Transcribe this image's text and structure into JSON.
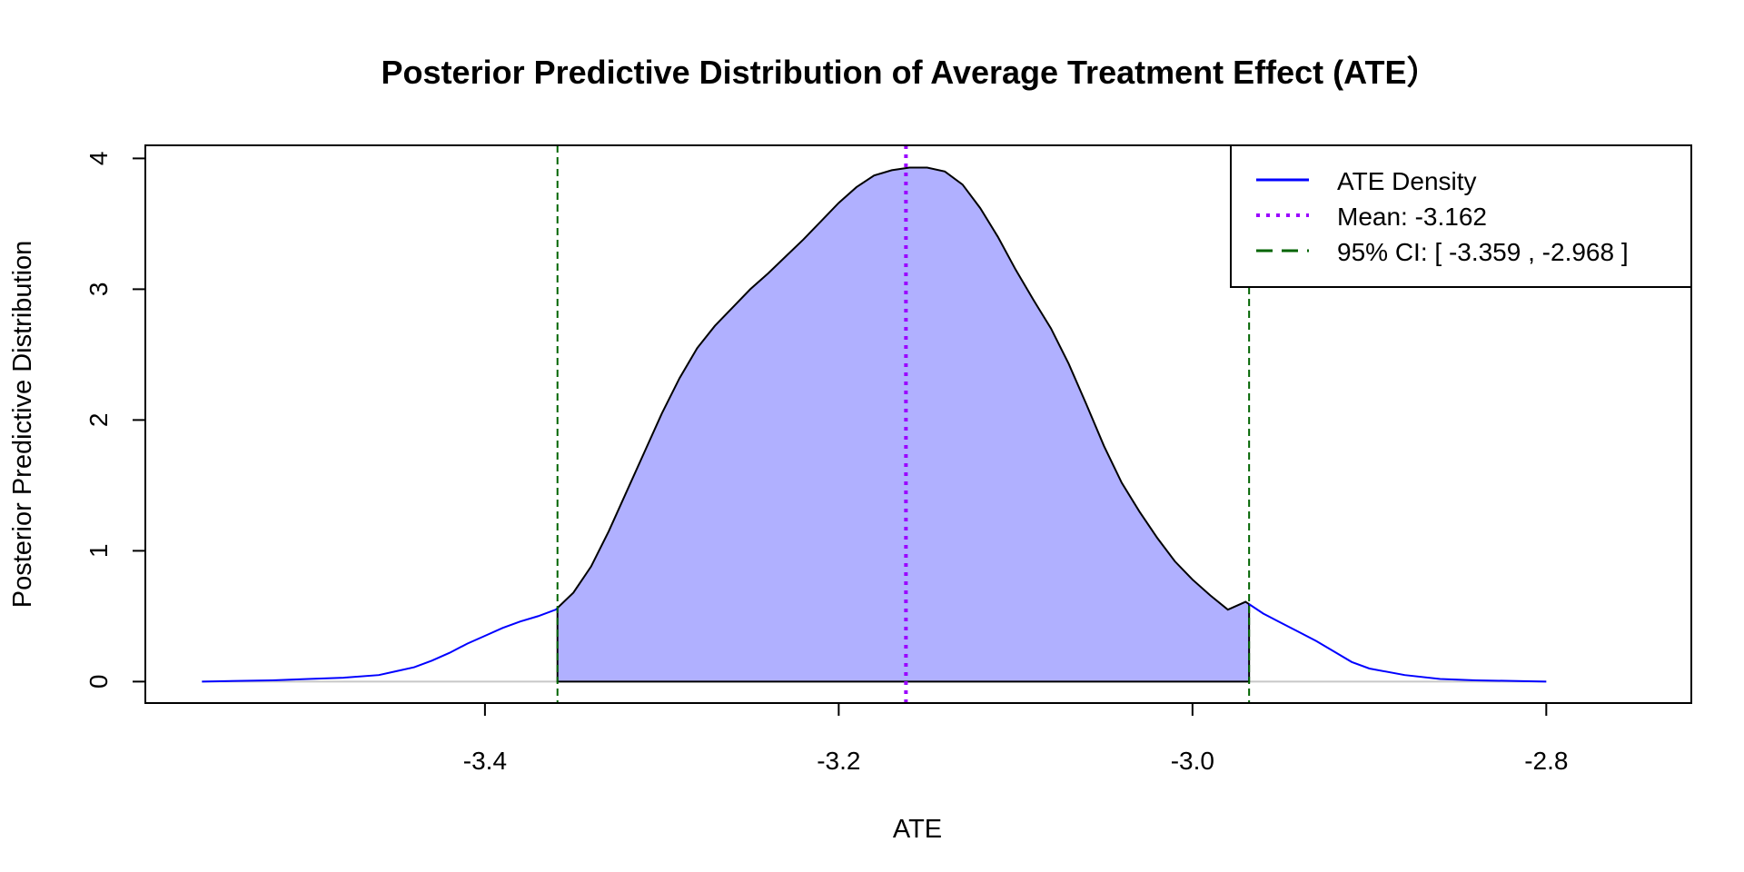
{
  "chart_data": {
    "type": "area",
    "title": "Posterior Predictive Distribution of Average Treatment Effect (ATE）",
    "xlabel": "ATE",
    "ylabel": "Posterior Predictive Distribution",
    "xlim": [
      -3.592,
      -2.718
    ],
    "ylim": [
      -0.164,
      4.1
    ],
    "x_ticks": [
      -3.4,
      -3.2,
      -3.0,
      -2.8
    ],
    "x_tick_labels": [
      "-3.4",
      "-3.2",
      "-3.0",
      "-2.8"
    ],
    "y_ticks": [
      0,
      1,
      2,
      3,
      4
    ],
    "y_tick_labels": [
      "0",
      "1",
      "2",
      "3",
      "4"
    ],
    "grid": false,
    "legend_position": "top-right",
    "mean": -3.162,
    "ci_lower": -3.359,
    "ci_upper": -2.968,
    "series": [
      {
        "name": "ATE Density",
        "color": "#0000ff",
        "x": [
          -3.56,
          -3.52,
          -3.5,
          -3.48,
          -3.46,
          -3.45,
          -3.44,
          -3.43,
          -3.42,
          -3.41,
          -3.4,
          -3.39,
          -3.38,
          -3.37,
          -3.36,
          -3.35,
          -3.34,
          -3.33,
          -3.32,
          -3.31,
          -3.3,
          -3.29,
          -3.28,
          -3.27,
          -3.26,
          -3.25,
          -3.24,
          -3.23,
          -3.22,
          -3.21,
          -3.2,
          -3.19,
          -3.18,
          -3.17,
          -3.16,
          -3.15,
          -3.14,
          -3.13,
          -3.12,
          -3.11,
          -3.1,
          -3.09,
          -3.08,
          -3.07,
          -3.06,
          -3.05,
          -3.04,
          -3.03,
          -3.02,
          -3.01,
          -3.0,
          -2.99,
          -2.98,
          -2.97,
          -2.96,
          -2.95,
          -2.94,
          -2.93,
          -2.92,
          -2.91,
          -2.9,
          -2.88,
          -2.86,
          -2.84,
          -2.8
        ],
        "values": [
          0.0,
          0.01,
          0.02,
          0.03,
          0.05,
          0.08,
          0.11,
          0.16,
          0.22,
          0.29,
          0.35,
          0.41,
          0.46,
          0.5,
          0.55,
          0.68,
          0.88,
          1.15,
          1.45,
          1.75,
          2.05,
          2.32,
          2.55,
          2.72,
          2.86,
          3.0,
          3.12,
          3.25,
          3.38,
          3.52,
          3.66,
          3.78,
          3.87,
          3.91,
          3.93,
          3.93,
          3.9,
          3.8,
          3.62,
          3.4,
          3.15,
          2.92,
          2.7,
          2.43,
          2.12,
          1.8,
          1.52,
          1.3,
          1.1,
          0.92,
          0.78,
          0.66,
          0.55,
          0.61,
          0.52,
          0.45,
          0.38,
          0.31,
          0.23,
          0.15,
          0.1,
          0.05,
          0.02,
          0.01,
          0.0
        ]
      },
      {
        "name": "Mean: -3.162",
        "color": "#9b00ff"
      },
      {
        "name": "95% CI: [ -3.359 , -2.968 ]",
        "color": "#006400"
      }
    ],
    "colors": {
      "fill": "#b0b0ff",
      "density_line": "#0000ff",
      "mean_line": "#9b00ff",
      "ci_line": "#006400",
      "baseline": "#c8c8c8"
    }
  }
}
